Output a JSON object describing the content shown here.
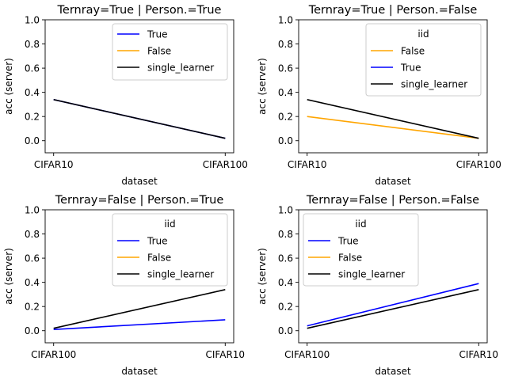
{
  "chart_data": [
    {
      "type": "line",
      "title": "Ternray=True | Person.=True",
      "xlabel": "dataset",
      "ylabel": "acc (server)",
      "categories": [
        "CIFAR10",
        "CIFAR100"
      ],
      "ylim": [
        -0.1,
        1.0
      ],
      "yticks": [
        "0.0",
        "0.2",
        "0.4",
        "0.6",
        "0.8",
        "1.0"
      ],
      "legend": {
        "placement": "upper-right",
        "title": ""
      },
      "series": [
        {
          "name": "True",
          "color": "#0000ff",
          "values": [
            0.34,
            0.02
          ]
        },
        {
          "name": "False",
          "color": "#ffa500",
          "values": [
            null,
            null
          ]
        },
        {
          "name": "single_learner",
          "color": "#000000",
          "values": [
            0.34,
            0.02
          ]
        }
      ]
    },
    {
      "type": "line",
      "title": "Ternray=True | Person.=False",
      "xlabel": "dataset",
      "ylabel": "acc (server)",
      "categories": [
        "CIFAR10",
        "CIFAR100"
      ],
      "ylim": [
        -0.1,
        1.0
      ],
      "yticks": [
        "0.0",
        "0.2",
        "0.4",
        "0.6",
        "0.8",
        "1.0"
      ],
      "legend": {
        "placement": "upper-right",
        "title": "iid"
      },
      "series": [
        {
          "name": "False",
          "color": "#ffa500",
          "values": [
            0.2,
            0.02
          ]
        },
        {
          "name": "True",
          "color": "#0000ff",
          "values": [
            null,
            null
          ]
        },
        {
          "name": "single_learner",
          "color": "#000000",
          "values": [
            0.34,
            0.02
          ]
        }
      ]
    },
    {
      "type": "line",
      "title": "Ternray=False | Person.=True",
      "xlabel": "dataset",
      "ylabel": "acc (server)",
      "categories": [
        "CIFAR100",
        "CIFAR10"
      ],
      "ylim": [
        -0.1,
        1.0
      ],
      "yticks": [
        "0.0",
        "0.2",
        "0.4",
        "0.6",
        "0.8",
        "1.0"
      ],
      "legend": {
        "placement": "upper-right",
        "title": "iid"
      },
      "series": [
        {
          "name": "True",
          "color": "#0000ff",
          "values": [
            0.01,
            0.09
          ]
        },
        {
          "name": "False",
          "color": "#ffa500",
          "values": [
            null,
            null
          ]
        },
        {
          "name": "single_learner",
          "color": "#000000",
          "values": [
            0.02,
            0.34
          ]
        }
      ]
    },
    {
      "type": "line",
      "title": "Ternray=False | Person.=False",
      "xlabel": "dataset",
      "ylabel": "acc (server)",
      "categories": [
        "CIFAR100",
        "CIFAR10"
      ],
      "ylim": [
        -0.1,
        1.0
      ],
      "yticks": [
        "0.0",
        "0.2",
        "0.4",
        "0.6",
        "0.8",
        "1.0"
      ],
      "legend": {
        "placement": "upper-left",
        "title": "iid"
      },
      "series": [
        {
          "name": "True",
          "color": "#0000ff",
          "values": [
            0.04,
            0.39
          ]
        },
        {
          "name": "False",
          "color": "#ffa500",
          "values": [
            null,
            null
          ]
        },
        {
          "name": "single_learner",
          "color": "#000000",
          "values": [
            0.02,
            0.34
          ]
        }
      ]
    }
  ]
}
